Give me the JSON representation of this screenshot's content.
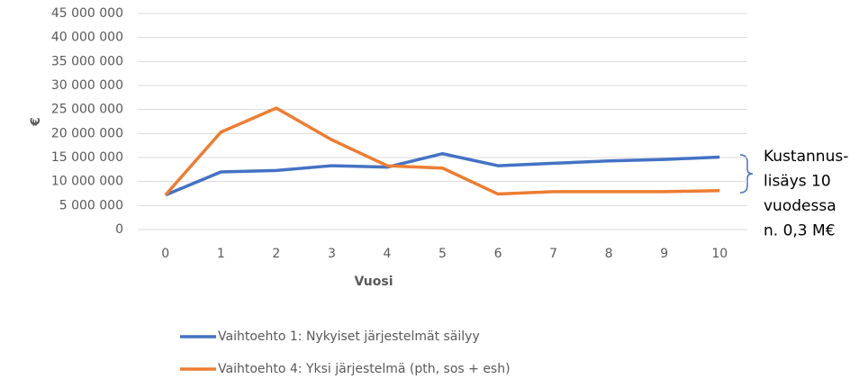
{
  "chart_data": {
    "type": "line",
    "x_label": "Vuosi",
    "y_label": "€",
    "categories": [
      "0",
      "1",
      "2",
      "3",
      "4",
      "5",
      "6",
      "7",
      "8",
      "9",
      "10"
    ],
    "series": [
      {
        "name": "Vaihtoehto 1: Nykyiset järjestelmät säilyy",
        "color": "#4472c4",
        "values": [
          7200000,
          12000000,
          12300000,
          13300000,
          13000000,
          15800000,
          13300000,
          13800000,
          14300000,
          14600000,
          15100000
        ]
      },
      {
        "name": "Vaihtoehto 4: Yksi järjestelmä (pth, sos + esh)",
        "color": "#ed7d31",
        "values": [
          7200000,
          20300000,
          25300000,
          18700000,
          13300000,
          12800000,
          7400000,
          7900000,
          7900000,
          7900000,
          8100000
        ]
      }
    ],
    "ylim": [
      0,
      45000000
    ],
    "yticks": [
      0,
      {
        "value": 5000000,
        "label": "5 000 000"
      },
      {
        "value": 10000000,
        "label": "10 000 000"
      },
      {
        "value": 15000000,
        "label": "15 000 000"
      },
      {
        "value": 20000000,
        "label": "20 000 000"
      },
      {
        "value": 25000000,
        "label": "25 000 000"
      },
      {
        "value": 30000000,
        "label": "30 000 000"
      },
      {
        "value": 35000000,
        "label": "35 000 000"
      },
      {
        "value": 40000000,
        "label": "40 000 000"
      },
      {
        "value": 45000000,
        "label": "45 000 000"
      }
    ],
    "grid": true,
    "annotation": [
      "Kustannus-",
      "lisäys 10",
      "vuodessa",
      "n. 0,3 M€"
    ]
  }
}
